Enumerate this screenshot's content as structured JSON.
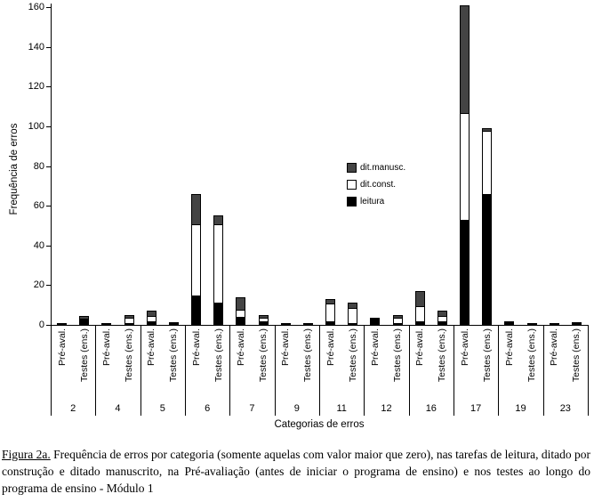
{
  "caption": {
    "label": "Figura 2a.",
    "text": " Frequência de erros por categoria (somente aquelas com valor maior que zero), nas tarefas de leitura, ditado por construção e ditado manuscrito, na Pré-avaliação (antes de iniciar o programa de ensino) e nos testes ao longo do programa de ensino - Módulo 1"
  },
  "chart_data": {
    "type": "bar",
    "stacked": true,
    "title": "",
    "xlabel": "Categorias de erros",
    "ylabel": "Frequência de erros",
    "ylim": [
      0,
      160
    ],
    "ytick_step": 20,
    "yticks": [
      0,
      20,
      40,
      60,
      80,
      100,
      120,
      140,
      160
    ],
    "grid": false,
    "legend_position": "middle-right-inside",
    "categories": [
      "2",
      "4",
      "5",
      "6",
      "7",
      "9",
      "11",
      "12",
      "16",
      "17",
      "19",
      "23"
    ],
    "bar_labels": [
      "Pré-aval.",
      "Testes (ens.)"
    ],
    "legend": [
      {
        "name": "dit.manusc.",
        "color": "#444444"
      },
      {
        "name": "dit.const.",
        "color": "#ffffff"
      },
      {
        "name": "leitura",
        "color": "#000000"
      }
    ],
    "series": [
      {
        "name": "leitura",
        "color": "#000000",
        "pre_aval": [
          1,
          1,
          2,
          15,
          4,
          1,
          2,
          3,
          2,
          53,
          2,
          1
        ],
        "testes": [
          3,
          1,
          1,
          11,
          2,
          1,
          1,
          1,
          2,
          66,
          1,
          1
        ]
      },
      {
        "name": "dit.const.",
        "color": "#ffffff",
        "pre_aval": [
          0,
          0,
          3,
          36,
          4,
          0,
          9,
          0,
          8,
          54,
          0,
          0
        ],
        "testes": [
          0,
          3,
          1,
          40,
          2,
          0,
          8,
          3,
          3,
          32,
          0,
          1
        ]
      },
      {
        "name": "dit.manusc.",
        "color": "#444444",
        "pre_aval": [
          0,
          0,
          3,
          16,
          7,
          0,
          3,
          1,
          8,
          55,
          0,
          0
        ],
        "testes": [
          2,
          2,
          0,
          5,
          2,
          0,
          3,
          2,
          3,
          2,
          0,
          0
        ]
      }
    ]
  }
}
